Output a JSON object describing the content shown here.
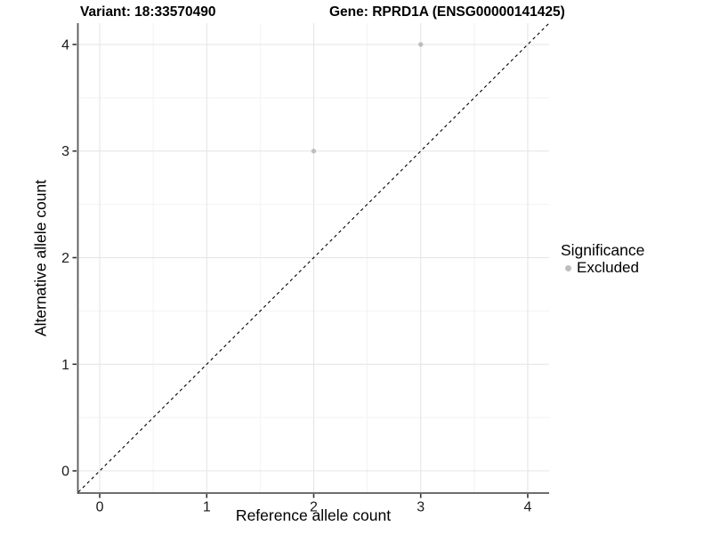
{
  "chart_data": {
    "type": "scatter",
    "title_left": "Variant: 18:33570490",
    "title_right": "Gene: RPRD1A (ENSG00000141425)",
    "xlabel": "Reference allele count",
    "ylabel": "Alternative allele count",
    "xlim": [
      -0.2,
      4.2
    ],
    "ylim": [
      -0.2,
      4.2
    ],
    "xticks": [
      0,
      1,
      2,
      3,
      4
    ],
    "yticks": [
      0,
      1,
      2,
      3,
      4
    ],
    "minor_step": 0.5,
    "grid": true,
    "series": [
      {
        "name": "Excluded",
        "color": "#bebebe",
        "points": [
          {
            "x": 2,
            "y": 3
          },
          {
            "x": 3,
            "y": 4
          }
        ]
      }
    ],
    "reference_line": {
      "equation": "y = x",
      "style": "dashed",
      "color": "#000000"
    },
    "legend": {
      "title": "Significance",
      "position": "right",
      "items": [
        {
          "label": "Excluded",
          "color": "#bebebe"
        }
      ]
    },
    "colors": {
      "background": "#ffffff",
      "grid_major": "#e4e4e4",
      "grid_minor": "#f2f2f2",
      "axis_line": "#595959",
      "tick_mark": "#333333",
      "tick_label": "#1a1a1a",
      "point": "#bebebe"
    }
  }
}
